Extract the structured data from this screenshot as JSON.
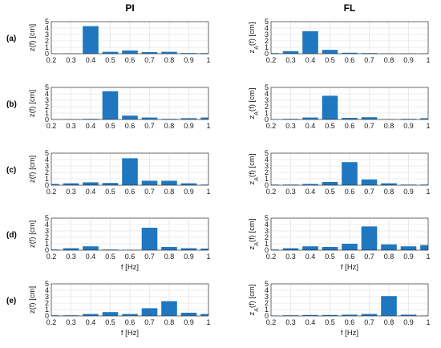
{
  "figure": {
    "columns": [
      "PI",
      "FL"
    ],
    "row_labels": [
      "(a)",
      "(b)",
      "(c)",
      "(d)",
      "(e)"
    ],
    "bar_color": "#1f77c0"
  },
  "chart_data": {
    "type": "bar",
    "panels": [
      {
        "row": "(a)",
        "column": "PI",
        "ylabel": "z(f) [cm]",
        "xlabel": "",
        "xlim": [
          0.2,
          1.0
        ],
        "ylim": [
          0,
          5
        ],
        "x": [
          0.2,
          0.3,
          0.4,
          0.5,
          0.6,
          0.7,
          0.8,
          0.9,
          1.0
        ],
        "values": [
          0.05,
          0.05,
          4.3,
          0.3,
          0.5,
          0.25,
          0.3,
          0.1,
          0.1
        ]
      },
      {
        "row": "(a)",
        "column": "FL",
        "ylabel_main": "z",
        "ylabel_sub": "A",
        "ylabel_rest": "(f) [cm]",
        "xlabel": "",
        "xlim": [
          0.2,
          1.0
        ],
        "ylim": [
          0,
          5
        ],
        "x": [
          0.2,
          0.3,
          0.4,
          0.5,
          0.6,
          0.7,
          0.8,
          0.9,
          1.0
        ],
        "values": [
          0.1,
          0.4,
          3.5,
          0.6,
          0.15,
          0.1,
          0.05,
          0.05,
          0.05
        ]
      },
      {
        "row": "(b)",
        "column": "PI",
        "ylabel": "z(f) [cm]",
        "xlabel": "",
        "xlim": [
          0.2,
          1.0
        ],
        "ylim": [
          0,
          5
        ],
        "x": [
          0.2,
          0.3,
          0.4,
          0.5,
          0.6,
          0.7,
          0.8,
          0.9,
          1.0
        ],
        "values": [
          0.05,
          0.05,
          0.1,
          4.4,
          0.6,
          0.3,
          0.1,
          0.2,
          0.3
        ]
      },
      {
        "row": "(b)",
        "column": "FL",
        "ylabel_main": "z",
        "ylabel_sub": "A",
        "ylabel_rest": "(f) [cm]",
        "xlabel": "",
        "xlim": [
          0.2,
          1.0
        ],
        "ylim": [
          0,
          5
        ],
        "x": [
          0.2,
          0.3,
          0.4,
          0.5,
          0.6,
          0.7,
          0.8,
          0.9,
          1.0
        ],
        "values": [
          0.05,
          0.1,
          0.3,
          3.7,
          0.25,
          0.35,
          0.05,
          0.1,
          0.2
        ]
      },
      {
        "row": "(c)",
        "column": "PI",
        "ylabel": "z(f) [cm]",
        "xlabel": "",
        "xlim": [
          0.2,
          1.0
        ],
        "ylim": [
          0,
          5
        ],
        "x": [
          0.2,
          0.3,
          0.4,
          0.5,
          0.6,
          0.7,
          0.8,
          0.9,
          1.0
        ],
        "values": [
          0.2,
          0.3,
          0.45,
          0.35,
          4.2,
          0.7,
          0.7,
          0.3,
          0.1
        ]
      },
      {
        "row": "(c)",
        "column": "FL",
        "ylabel_main": "z",
        "ylabel_sub": "A",
        "ylabel_rest": "(f) [cm]",
        "xlabel": "",
        "xlim": [
          0.2,
          1.0
        ],
        "ylim": [
          0,
          5
        ],
        "x": [
          0.2,
          0.3,
          0.4,
          0.5,
          0.6,
          0.7,
          0.8,
          0.9,
          1.0
        ],
        "values": [
          0.1,
          0.1,
          0.2,
          0.5,
          3.6,
          0.9,
          0.3,
          0.1,
          0.1
        ]
      },
      {
        "row": "(d)",
        "column": "PI",
        "ylabel": "z(f) [cm]",
        "xlabel": "f [Hz]",
        "xlim": [
          0.2,
          1.0
        ],
        "ylim": [
          0,
          5
        ],
        "x": [
          0.2,
          0.3,
          0.4,
          0.5,
          0.6,
          0.7,
          0.8,
          0.9,
          1.0
        ],
        "values": [
          0.1,
          0.3,
          0.6,
          0.1,
          0.05,
          3.5,
          0.5,
          0.3,
          0.25
        ]
      },
      {
        "row": "(d)",
        "column": "FL",
        "ylabel_main": "z",
        "ylabel_sub": "A",
        "ylabel_rest": "(f) [cm]",
        "xlabel": "f [Hz]",
        "xlim": [
          0.2,
          1.0
        ],
        "ylim": [
          0,
          5
        ],
        "x": [
          0.2,
          0.3,
          0.4,
          0.5,
          0.6,
          0.7,
          0.8,
          0.9,
          1.0
        ],
        "values": [
          0.1,
          0.3,
          0.6,
          0.5,
          1.0,
          3.7,
          0.9,
          0.6,
          0.8
        ]
      },
      {
        "row": "(e)",
        "column": "PI",
        "ylabel": "z(f) [cm]",
        "xlabel": "f [Hz]",
        "xlim": [
          0.2,
          1.0
        ],
        "ylim": [
          0,
          5
        ],
        "x": [
          0.2,
          0.3,
          0.4,
          0.5,
          0.6,
          0.7,
          0.8,
          0.9,
          1.0
        ],
        "values": [
          0.1,
          0.1,
          0.3,
          0.6,
          0.3,
          1.2,
          2.3,
          0.5,
          0.3
        ]
      },
      {
        "row": "(e)",
        "column": "FL",
        "ylabel_main": "z",
        "ylabel_sub": "A",
        "ylabel_rest": "(f) [cm]",
        "xlabel": "f [Hz]",
        "xlim": [
          0.2,
          1.0
        ],
        "ylim": [
          0,
          5
        ],
        "x": [
          0.2,
          0.3,
          0.4,
          0.5,
          0.6,
          0.7,
          0.8,
          0.9,
          1.0
        ],
        "values": [
          0.05,
          0.1,
          0.15,
          0.15,
          0.2,
          0.3,
          3.1,
          0.2,
          0.05
        ]
      }
    ],
    "xticks": [
      "0.2",
      "0.3",
      "0.4",
      "0.5",
      "0.6",
      "0.7",
      "0.8",
      "0.9",
      "1"
    ],
    "yticks": [
      "0",
      "1",
      "2",
      "3",
      "4",
      "5"
    ],
    "grid": true
  }
}
